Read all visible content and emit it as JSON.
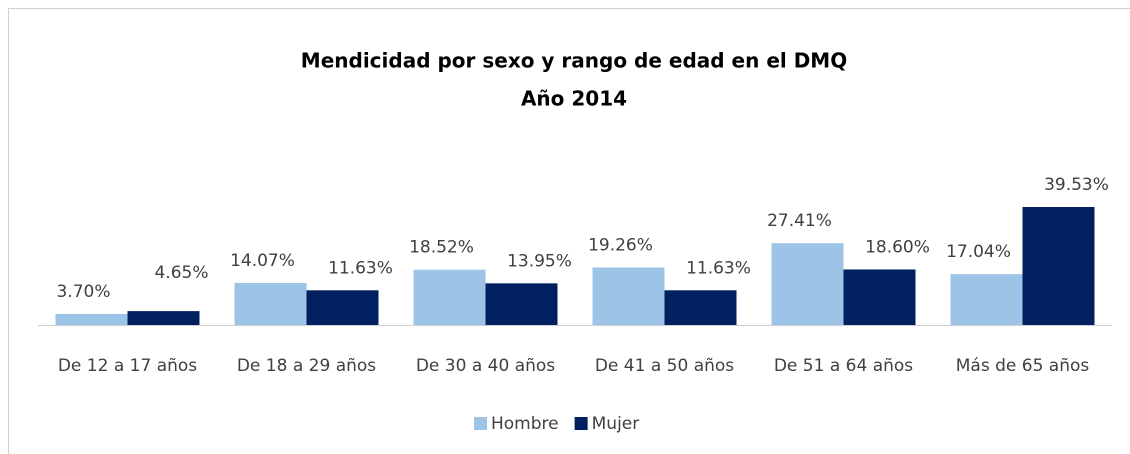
{
  "chart_data": {
    "type": "bar",
    "title": "Mendicidad por sexo y rango de edad en el DMQ",
    "subtitle": "Año 2014",
    "categories": [
      "De 12 a 17 años",
      "De 18 a 29 años",
      "De 30 a 40 años",
      "De 41 a 50 años",
      "De 51 a 64 años",
      "Más de 65 años"
    ],
    "series": [
      {
        "name": "Hombre",
        "color": "#9dc3e6",
        "values": [
          3.7,
          14.07,
          18.52,
          19.26,
          27.41,
          17.04
        ],
        "value_labels": [
          "3.70%",
          "14.07%",
          "18.52%",
          "19.26%",
          "27.41%",
          "17.04%"
        ]
      },
      {
        "name": "Mujer",
        "color": "#002060",
        "values": [
          4.65,
          11.63,
          13.95,
          11.63,
          18.6,
          39.53
        ],
        "value_labels": [
          "4.65%",
          "11.63%",
          "13.95%",
          "11.63%",
          "18.60%",
          "39.53%"
        ]
      }
    ],
    "legend": "bottom"
  }
}
